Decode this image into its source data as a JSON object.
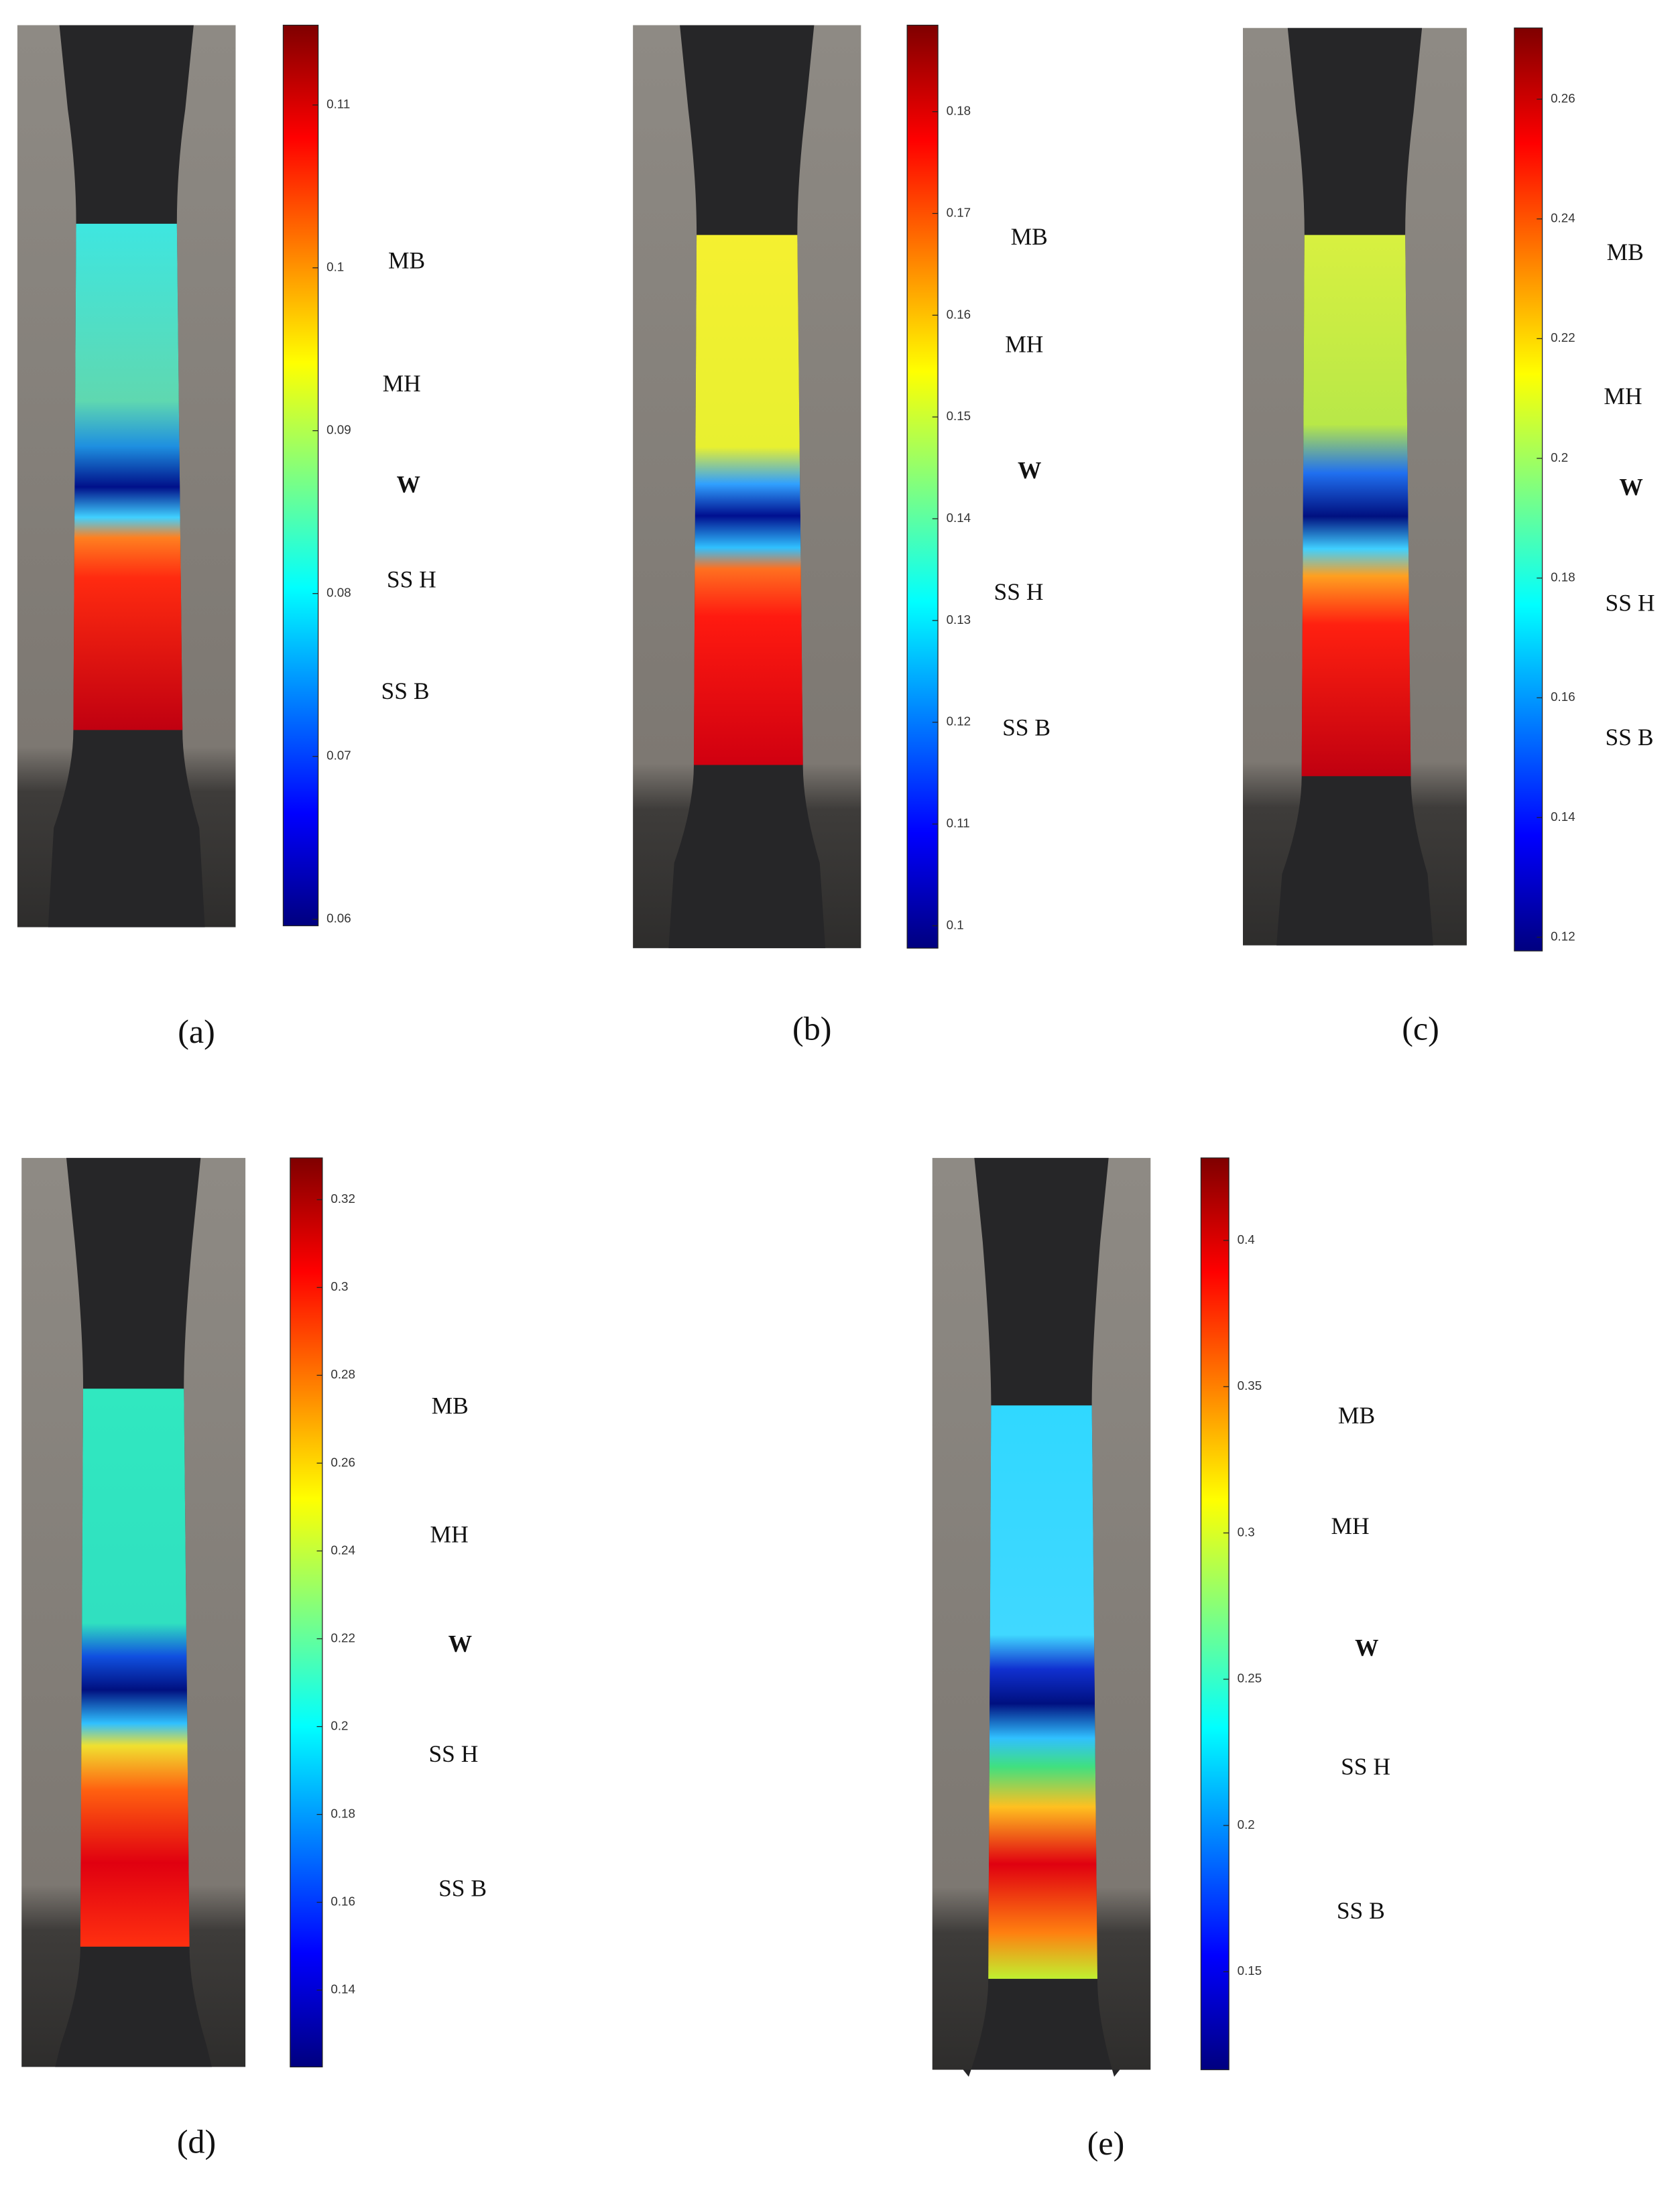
{
  "panels": [
    {
      "label": "(a)",
      "colorbar": {
        "range": [
          0.0596,
          0.1149
        ],
        "ticks": [
          0.06,
          0.07,
          0.08,
          0.09,
          0.1,
          0.11
        ]
      },
      "zones": [
        "MB",
        "MH",
        "W",
        "SS H",
        "SS B"
      ]
    },
    {
      "label": "(b)",
      "colorbar": {
        "range": [
          0.0978,
          0.1885
        ],
        "ticks": [
          0.1,
          0.11,
          0.12,
          0.13,
          0.14,
          0.15,
          0.16,
          0.17,
          0.18
        ]
      },
      "zones": [
        "MB",
        "MH",
        "W",
        "SS H",
        "SS B"
      ]
    },
    {
      "label": "(c)",
      "colorbar": {
        "range": [
          0.1177,
          0.2719
        ],
        "ticks": [
          0.12,
          0.14,
          0.16,
          0.18,
          0.2,
          0.22,
          0.24,
          0.26
        ]
      },
      "zones": [
        "MB",
        "MH",
        "W",
        "SS H",
        "SS B"
      ]
    },
    {
      "label": "(d)",
      "colorbar": {
        "range": [
          0.1225,
          0.3295
        ],
        "ticks": [
          0.14,
          0.16,
          0.18,
          0.2,
          0.22,
          0.24,
          0.26,
          0.28,
          0.3,
          0.32
        ]
      },
      "zones": [
        "MB",
        "MH",
        "W",
        "SS H",
        "SS B"
      ]
    },
    {
      "label": "(e)",
      "colorbar": {
        "range": [
          0.1165,
          0.4282
        ],
        "ticks": [
          0.15,
          0.2,
          0.25,
          0.3,
          0.35,
          0.4
        ]
      },
      "zones": [
        "MB",
        "MH",
        "W",
        "SS H",
        "SS B"
      ]
    }
  ]
}
